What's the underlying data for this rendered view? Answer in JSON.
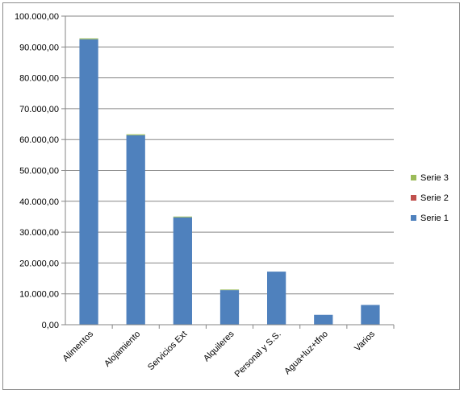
{
  "chart_data": {
    "type": "bar",
    "stacked": true,
    "categories": [
      "Alimentos",
      "Alojamiento",
      "Servicios Ext",
      "Alquileres",
      "Personal y S.S.",
      "Agua+luz+tfno",
      "Varios"
    ],
    "series": [
      {
        "name": "Serie 1",
        "color": "#4f81bd",
        "values": [
          92500,
          61400,
          34800,
          11200,
          17200,
          3200,
          6400
        ]
      },
      {
        "name": "Serie 2",
        "color": "#c0504d",
        "values": [
          0,
          0,
          0,
          0,
          0,
          0,
          0
        ]
      },
      {
        "name": "Serie 3",
        "color": "#9bbb59",
        "values": [
          300,
          300,
          250,
          200,
          0,
          0,
          0
        ]
      }
    ],
    "yticks": [
      "0,00",
      "10.000,00",
      "20.000,00",
      "30.000,00",
      "40.000,00",
      "50.000,00",
      "60.000,00",
      "70.000,00",
      "80.000,00",
      "90.000,00",
      "100.000,00"
    ],
    "ylim": [
      0,
      100000
    ],
    "grid": true,
    "legend_position": "right"
  }
}
